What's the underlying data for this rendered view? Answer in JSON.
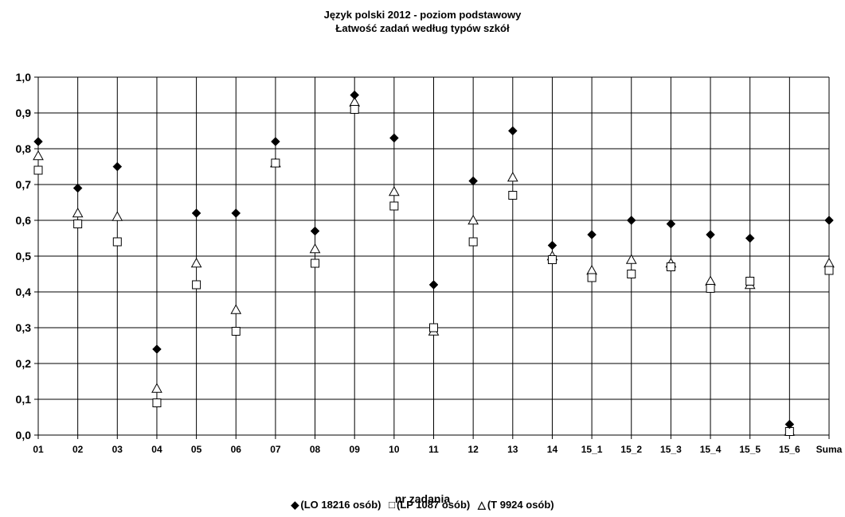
{
  "chart_data": {
    "type": "scatter",
    "title": "Język polski 2012 - poziom podstawowy",
    "subtitle": "Łatwość zadań według typów szkół",
    "xlabel": "nr zadania",
    "ylabel": "",
    "ylim": [
      0,
      1.0
    ],
    "yticks": [
      "0,0",
      "0,1",
      "0,2",
      "0,3",
      "0,4",
      "0,5",
      "0,6",
      "0,7",
      "0,8",
      "0,9",
      "1,0"
    ],
    "grid": "horizontal",
    "legend_position": "bottom",
    "categories": [
      "01",
      "02",
      "03",
      "04",
      "05",
      "06",
      "07",
      "08",
      "09",
      "10",
      "11",
      "12",
      "13",
      "14",
      "15_1",
      "15_2",
      "15_3",
      "15_4",
      "15_5",
      "15_6",
      "Suma"
    ],
    "series": [
      {
        "name": "(LO 18216 osób)",
        "marker": "diamond",
        "legend_symbol": "◆",
        "values": [
          0.82,
          0.69,
          0.75,
          0.24,
          0.62,
          0.62,
          0.82,
          0.57,
          0.95,
          0.83,
          0.42,
          0.71,
          0.85,
          0.53,
          0.56,
          0.6,
          0.59,
          0.56,
          0.55,
          0.03,
          0.6
        ]
      },
      {
        "name": "(LP 1087 osób)",
        "marker": "square",
        "legend_symbol": "□",
        "values": [
          0.74,
          0.59,
          0.54,
          0.09,
          0.42,
          0.29,
          0.76,
          0.48,
          0.91,
          0.64,
          0.3,
          0.54,
          0.67,
          0.49,
          0.44,
          0.45,
          0.47,
          0.41,
          0.43,
          0.01,
          0.46
        ]
      },
      {
        "name": "(T 9924 osób)",
        "marker": "triangle",
        "legend_symbol": "△",
        "values": [
          0.78,
          0.62,
          0.61,
          0.13,
          0.48,
          0.35,
          0.76,
          0.52,
          0.93,
          0.68,
          0.29,
          0.6,
          0.72,
          0.5,
          0.46,
          0.49,
          0.48,
          0.43,
          0.42,
          0.01,
          0.48
        ]
      }
    ],
    "colors": {
      "marker": "#000000",
      "grid": "#000000",
      "background": "#ffffff"
    }
  }
}
